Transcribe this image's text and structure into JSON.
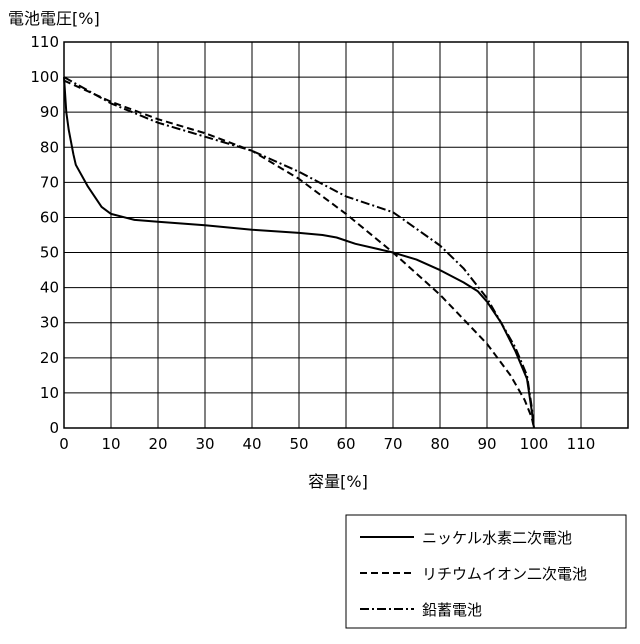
{
  "chart_data": {
    "type": "line",
    "title": "",
    "ylabel": "電池電圧[%]",
    "xlabel": "容量[%]",
    "xlim": [
      0,
      120
    ],
    "ylim": [
      0,
      110
    ],
    "x_ticks": [
      0,
      10,
      20,
      30,
      40,
      50,
      60,
      70,
      80,
      90,
      100,
      110
    ],
    "y_ticks": [
      0,
      10,
      20,
      30,
      40,
      50,
      60,
      70,
      80,
      90,
      100,
      110
    ],
    "x_tick_labels": [
      "0",
      "10",
      "20",
      "30",
      "40",
      "50",
      "60",
      "70",
      "80",
      "90",
      "100",
      "110"
    ],
    "y_tick_labels": [
      "0",
      "10",
      "20",
      "30",
      "40",
      "50",
      "60",
      "70",
      "80",
      "90",
      "100",
      "110"
    ],
    "grid": true,
    "legend_position": "bottom-right",
    "series": [
      {
        "name": "ニッケル水素二次電池",
        "style": "solid",
        "points": [
          [
            0,
            100
          ],
          [
            0.5,
            90
          ],
          [
            1,
            85
          ],
          [
            2,
            78
          ],
          [
            2.5,
            75
          ],
          [
            5,
            69
          ],
          [
            7,
            65
          ],
          [
            8,
            63
          ],
          [
            10,
            61
          ],
          [
            15,
            59.3
          ],
          [
            20,
            58.8
          ],
          [
            30,
            57.8
          ],
          [
            40,
            56.5
          ],
          [
            50,
            55.6
          ],
          [
            55,
            55
          ],
          [
            58,
            54.3
          ],
          [
            62,
            52.5
          ],
          [
            70,
            50
          ],
          [
            75,
            48
          ],
          [
            80,
            45
          ],
          [
            85,
            41.5
          ],
          [
            88,
            39
          ],
          [
            90,
            36
          ],
          [
            93,
            30
          ],
          [
            96,
            22
          ],
          [
            98.5,
            14
          ],
          [
            99.5,
            5
          ],
          [
            100,
            0
          ]
        ]
      },
      {
        "name": "リチウムイオン二次電池",
        "style": "dashed",
        "points": [
          [
            0,
            99
          ],
          [
            5,
            96
          ],
          [
            10,
            93
          ],
          [
            20,
            88
          ],
          [
            30,
            84
          ],
          [
            40,
            79
          ],
          [
            50,
            71
          ],
          [
            60,
            61
          ],
          [
            70,
            50
          ],
          [
            80,
            38
          ],
          [
            90,
            24
          ],
          [
            95,
            15
          ],
          [
            98,
            8
          ],
          [
            99.5,
            3
          ],
          [
            100,
            0
          ]
        ]
      },
      {
        "name": "鉛蓄電池",
        "style": "dashdot",
        "points": [
          [
            0,
            100
          ],
          [
            10,
            92.5
          ],
          [
            20,
            87
          ],
          [
            30,
            83
          ],
          [
            40,
            79
          ],
          [
            50,
            73
          ],
          [
            60,
            66
          ],
          [
            70,
            61.5
          ],
          [
            80,
            52
          ],
          [
            85,
            45.5
          ],
          [
            90,
            37
          ],
          [
            93,
            30
          ],
          [
            96,
            23
          ],
          [
            98.5,
            15
          ],
          [
            99.5,
            6
          ],
          [
            100,
            0
          ]
        ]
      }
    ]
  }
}
